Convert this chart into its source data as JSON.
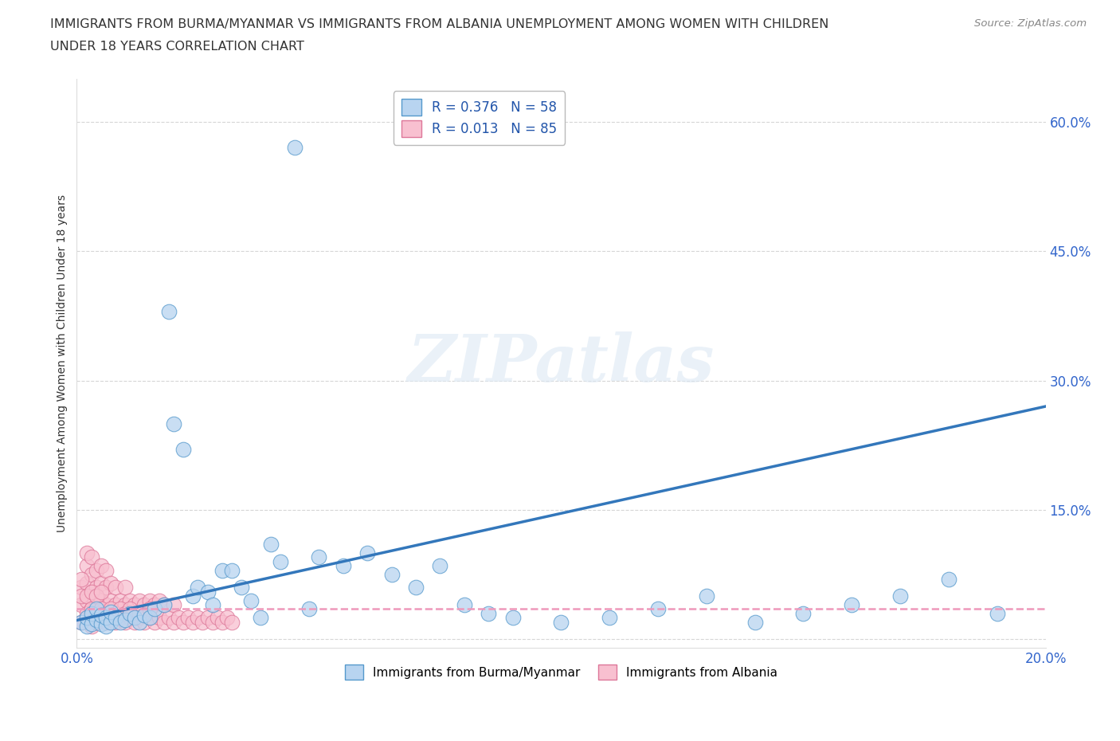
{
  "title_line1": "IMMIGRANTS FROM BURMA/MYANMAR VS IMMIGRANTS FROM ALBANIA UNEMPLOYMENT AMONG WOMEN WITH CHILDREN",
  "title_line2": "UNDER 18 YEARS CORRELATION CHART",
  "source": "Source: ZipAtlas.com",
  "ylabel": "Unemployment Among Women with Children Under 18 years",
  "xlim": [
    0.0,
    0.2
  ],
  "ylim": [
    -0.01,
    0.65
  ],
  "xticks": [
    0.0,
    0.04,
    0.08,
    0.12,
    0.16,
    0.2
  ],
  "xticklabels": [
    "0.0%",
    "",
    "",
    "",
    "",
    "20.0%"
  ],
  "yticks": [
    0.0,
    0.15,
    0.3,
    0.45,
    0.6
  ],
  "yticklabels": [
    "",
    "15.0%",
    "30.0%",
    "45.0%",
    "60.0%"
  ],
  "grid_color": "#cccccc",
  "background_color": "#ffffff",
  "series1_name": "Immigrants from Burma/Myanmar",
  "series1_color": "#b8d4f0",
  "series1_edge_color": "#5599cc",
  "series1_R": 0.376,
  "series1_N": 58,
  "series1_line_color": "#3377bb",
  "series2_name": "Immigrants from Albania",
  "series2_color": "#f8c0d0",
  "series2_edge_color": "#dd7799",
  "series2_R": 0.013,
  "series2_N": 85,
  "series2_line_color": "#ee99bb",
  "legend_R_color": "#2255aa",
  "series1_x": [
    0.001,
    0.002,
    0.002,
    0.003,
    0.003,
    0.004,
    0.004,
    0.005,
    0.005,
    0.006,
    0.006,
    0.007,
    0.007,
    0.008,
    0.009,
    0.01,
    0.011,
    0.012,
    0.013,
    0.014,
    0.015,
    0.016,
    0.018,
    0.019,
    0.02,
    0.022,
    0.024,
    0.025,
    0.027,
    0.028,
    0.03,
    0.032,
    0.034,
    0.036,
    0.038,
    0.04,
    0.042,
    0.045,
    0.048,
    0.05,
    0.055,
    0.06,
    0.065,
    0.07,
    0.075,
    0.08,
    0.085,
    0.09,
    0.1,
    0.11,
    0.12,
    0.13,
    0.14,
    0.15,
    0.16,
    0.17,
    0.18,
    0.19
  ],
  "series1_y": [
    0.02,
    0.015,
    0.025,
    0.018,
    0.03,
    0.022,
    0.035,
    0.018,
    0.028,
    0.015,
    0.025,
    0.02,
    0.032,
    0.025,
    0.02,
    0.022,
    0.03,
    0.025,
    0.02,
    0.028,
    0.025,
    0.035,
    0.04,
    0.38,
    0.25,
    0.22,
    0.05,
    0.06,
    0.055,
    0.04,
    0.08,
    0.08,
    0.06,
    0.045,
    0.025,
    0.11,
    0.09,
    0.57,
    0.035,
    0.095,
    0.085,
    0.1,
    0.075,
    0.06,
    0.085,
    0.04,
    0.03,
    0.025,
    0.02,
    0.025,
    0.035,
    0.05,
    0.02,
    0.03,
    0.04,
    0.05,
    0.07,
    0.03
  ],
  "series2_x": [
    0.001,
    0.001,
    0.001,
    0.002,
    0.002,
    0.002,
    0.002,
    0.002,
    0.003,
    0.003,
    0.003,
    0.003,
    0.003,
    0.004,
    0.004,
    0.004,
    0.004,
    0.005,
    0.005,
    0.005,
    0.005,
    0.006,
    0.006,
    0.006,
    0.006,
    0.007,
    0.007,
    0.007,
    0.008,
    0.008,
    0.008,
    0.009,
    0.009,
    0.01,
    0.01,
    0.01,
    0.011,
    0.011,
    0.012,
    0.012,
    0.013,
    0.013,
    0.014,
    0.014,
    0.015,
    0.015,
    0.016,
    0.016,
    0.017,
    0.017,
    0.018,
    0.018,
    0.019,
    0.02,
    0.02,
    0.021,
    0.022,
    0.023,
    0.024,
    0.025,
    0.026,
    0.027,
    0.028,
    0.029,
    0.03,
    0.031,
    0.032,
    0.001,
    0.001,
    0.002,
    0.002,
    0.003,
    0.003,
    0.004,
    0.004,
    0.005,
    0.005,
    0.006,
    0.007,
    0.008,
    0.009,
    0.01,
    0.011,
    0.013,
    0.015
  ],
  "series2_y": [
    0.02,
    0.04,
    0.06,
    0.025,
    0.045,
    0.065,
    0.085,
    0.1,
    0.015,
    0.035,
    0.055,
    0.075,
    0.095,
    0.02,
    0.04,
    0.06,
    0.08,
    0.025,
    0.045,
    0.065,
    0.085,
    0.02,
    0.04,
    0.06,
    0.08,
    0.025,
    0.045,
    0.065,
    0.02,
    0.04,
    0.06,
    0.025,
    0.045,
    0.02,
    0.04,
    0.06,
    0.025,
    0.045,
    0.02,
    0.04,
    0.025,
    0.045,
    0.02,
    0.04,
    0.025,
    0.045,
    0.02,
    0.04,
    0.025,
    0.045,
    0.02,
    0.04,
    0.025,
    0.02,
    0.04,
    0.025,
    0.02,
    0.025,
    0.02,
    0.025,
    0.02,
    0.025,
    0.02,
    0.025,
    0.02,
    0.025,
    0.02,
    0.05,
    0.07,
    0.03,
    0.05,
    0.035,
    0.055,
    0.03,
    0.05,
    0.035,
    0.055,
    0.03,
    0.035,
    0.03,
    0.035,
    0.03,
    0.035,
    0.03,
    0.035
  ]
}
